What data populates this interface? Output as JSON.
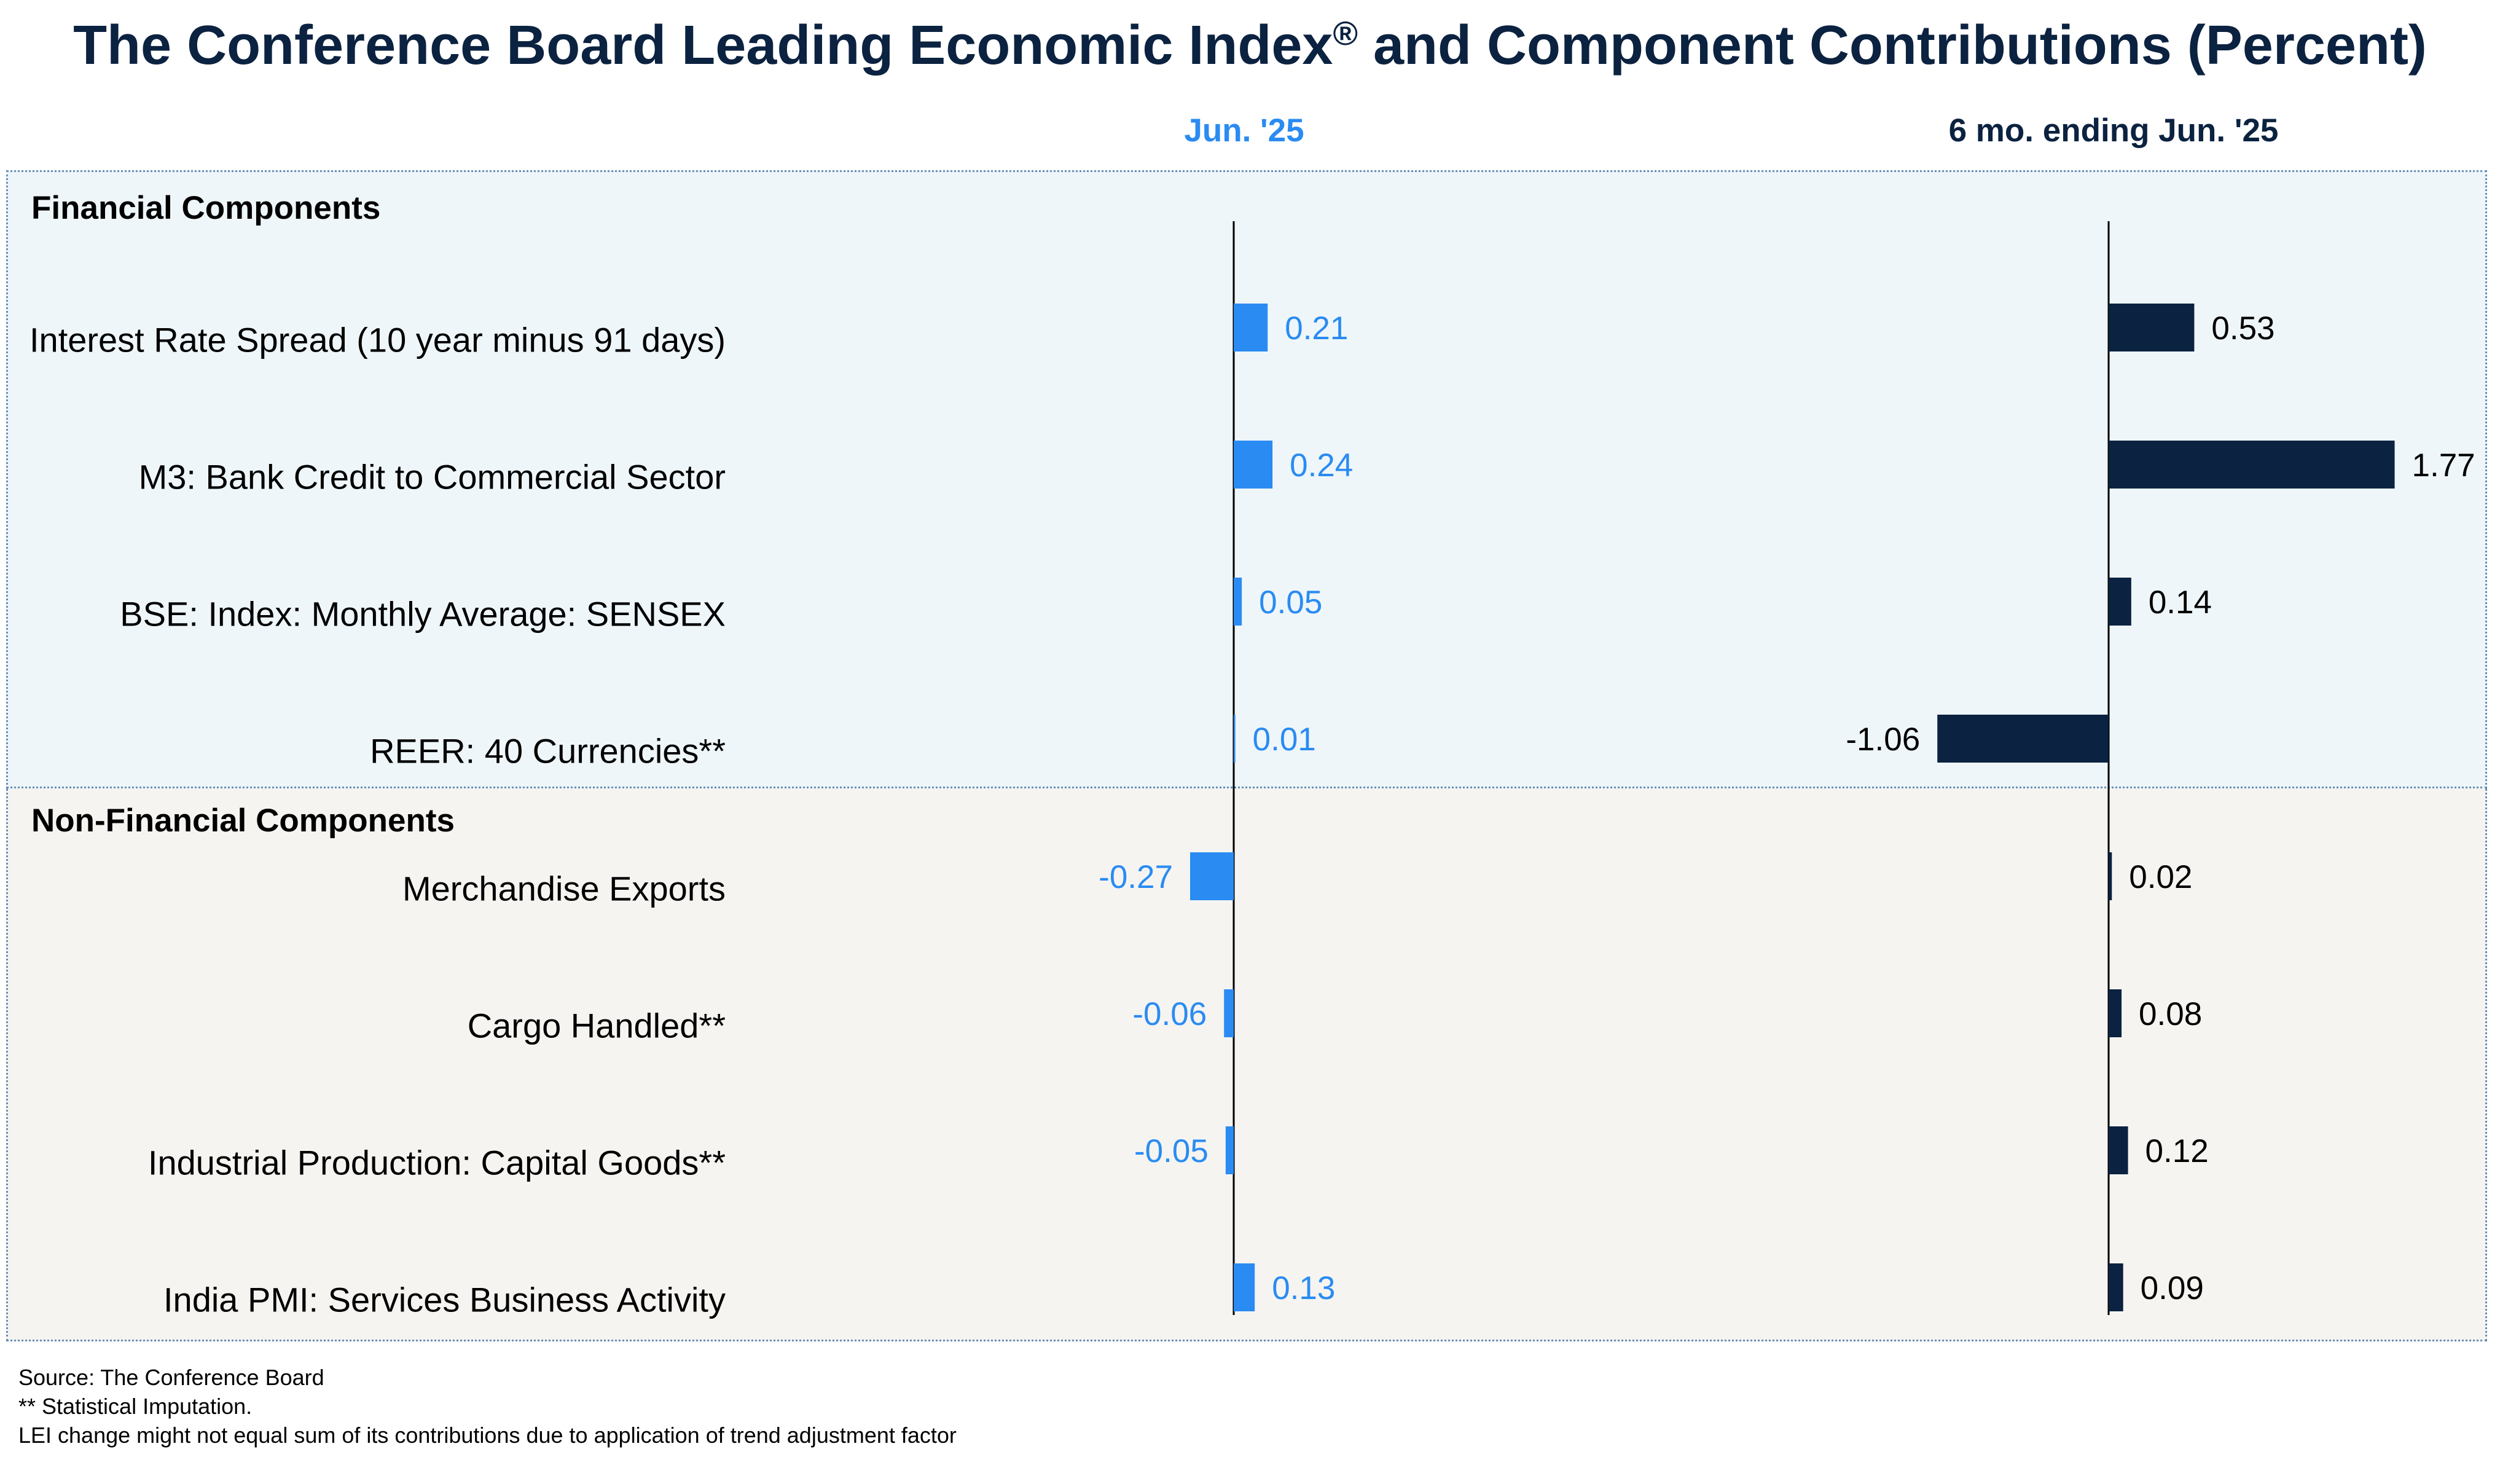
{
  "title": "The Conference Board Leading Economic Index",
  "title_mark": "®",
  "title_rest": " and Component Contributions (Percent)",
  "colors": {
    "current": "#2a8bf2",
    "six_month": "#0b2240",
    "title": "#0b2240"
  },
  "chart_data": {
    "type": "bar",
    "orientation": "horizontal",
    "columns": [
      {
        "name": "Jun. '25",
        "color": "#2a8bf2"
      },
      {
        "name": "6 mo. ending Jun. '25",
        "color": "#0b2240"
      }
    ],
    "sections": [
      {
        "name": "Financial Components",
        "rows": [
          {
            "label": "Interest Rate Spread (10 year minus 91 days)",
            "values": [
              0.21,
              0.53
            ],
            "value_labels": [
              "0.21",
              "0.53"
            ]
          },
          {
            "label": "M3: Bank Credit to Commercial Sector",
            "values": [
              0.24,
              1.77
            ],
            "value_labels": [
              "0.24",
              "1.77"
            ]
          },
          {
            "label": "BSE: Index: Monthly Average: SENSEX",
            "values": [
              0.05,
              0.14
            ],
            "value_labels": [
              "0.05",
              "0.14"
            ]
          },
          {
            "label": "REER: 40 Currencies**",
            "values": [
              0.01,
              -1.06
            ],
            "value_labels": [
              "0.01",
              "-1.06"
            ]
          }
        ]
      },
      {
        "name": "Non-Financial Components",
        "rows": [
          {
            "label": "Merchandise Exports",
            "values": [
              -0.27,
              0.02
            ],
            "value_labels": [
              "-0.27",
              "0.02"
            ]
          },
          {
            "label": "Cargo Handled**",
            "values": [
              -0.06,
              0.08
            ],
            "value_labels": [
              "-0.06",
              "0.08"
            ]
          },
          {
            "label": "Industrial Production: Capital Goods**",
            "values": [
              -0.05,
              0.12
            ],
            "value_labels": [
              "-0.05",
              "0.12"
            ]
          },
          {
            "label": "India PMI: Services Business Activity",
            "values": [
              0.13,
              0.09
            ],
            "value_labels": [
              "0.13",
              "0.09"
            ]
          }
        ]
      }
    ]
  },
  "footnotes": {
    "source": "Source: The Conference Board",
    "imputation": "**  Statistical Imputation.",
    "trend_note": "LEI change might not equal sum of its contributions due to application of trend adjustment factor"
  }
}
